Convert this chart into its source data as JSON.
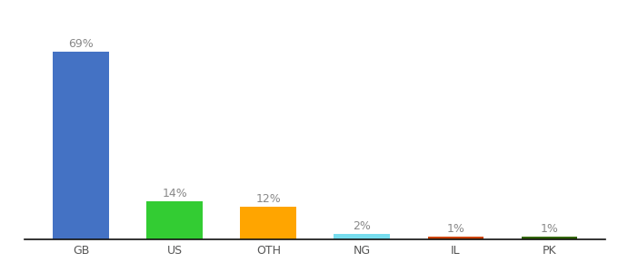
{
  "categories": [
    "GB",
    "US",
    "OTH",
    "NG",
    "IL",
    "PK"
  ],
  "values": [
    69,
    14,
    12,
    2,
    1,
    1
  ],
  "bar_colors": [
    "#4472c4",
    "#33cc33",
    "#ffa500",
    "#77ddee",
    "#cc4400",
    "#336600"
  ],
  "labels": [
    "69%",
    "14%",
    "12%",
    "2%",
    "1%",
    "1%"
  ],
  "ylim": [
    0,
    80
  ],
  "background_color": "#ffffff",
  "label_fontsize": 9,
  "tick_fontsize": 9,
  "bar_width": 0.6
}
